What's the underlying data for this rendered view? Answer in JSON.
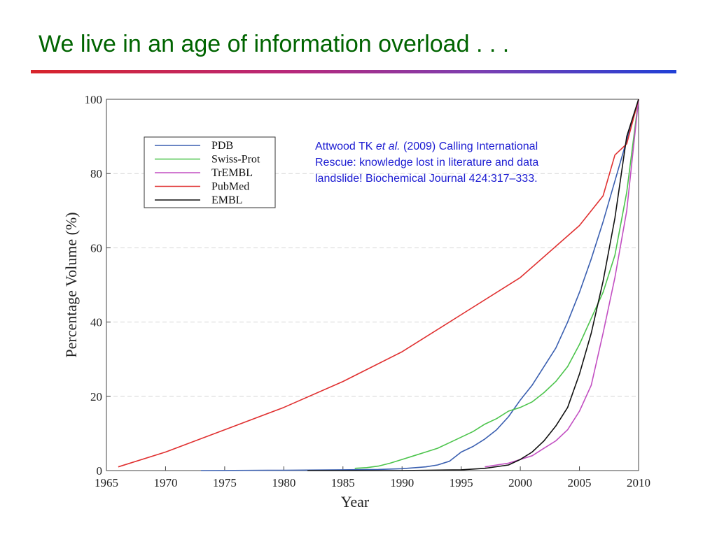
{
  "slide": {
    "title": "We live in an age of information overload . . ."
  },
  "citation": {
    "authors": "Attwood TK",
    "et_al": "et al.",
    "rest": " (2009) Calling International Rescue: knowledge lost in literature and data landslide! Biochemical Journal 424:317–333."
  },
  "colors": {
    "title": "#006400",
    "citation": "#1c1cd2",
    "PDB": "#3a5fb0",
    "Swiss-Prot": "#4cc44c",
    "TrEMBL": "#c24fc2",
    "PubMed": "#e03030",
    "EMBL": "#111111"
  },
  "chart_data": {
    "type": "line",
    "title": "",
    "xlabel": "Year",
    "ylabel": "Percentage Volume (%)",
    "xlim": [
      1965,
      2010
    ],
    "ylim": [
      0,
      100
    ],
    "xticks": [
      1965,
      1970,
      1975,
      1980,
      1985,
      1990,
      1995,
      2000,
      2005,
      2010
    ],
    "yticks": [
      0,
      20,
      40,
      60,
      80,
      100
    ],
    "grid": "horizontal dashed",
    "legend_position": "top-left",
    "series": [
      {
        "name": "PDB",
        "color": "#3a5fb0",
        "points": [
          [
            1973,
            0
          ],
          [
            1980,
            0.1
          ],
          [
            1985,
            0.2
          ],
          [
            1988,
            0.3
          ],
          [
            1990,
            0.5
          ],
          [
            1992,
            1.0
          ],
          [
            1993,
            1.5
          ],
          [
            1994,
            2.5
          ],
          [
            1995,
            5
          ],
          [
            1996,
            6.5
          ],
          [
            1997,
            8.5
          ],
          [
            1998,
            11
          ],
          [
            1999,
            14.5
          ],
          [
            2000,
            19
          ],
          [
            2001,
            23
          ],
          [
            2002,
            28
          ],
          [
            2003,
            33
          ],
          [
            2004,
            40
          ],
          [
            2005,
            48
          ],
          [
            2006,
            57
          ],
          [
            2007,
            67
          ],
          [
            2008,
            78
          ],
          [
            2009,
            89
          ],
          [
            2010,
            100
          ]
        ]
      },
      {
        "name": "Swiss-Prot",
        "color": "#4cc44c",
        "points": [
          [
            1986,
            0.6
          ],
          [
            1987,
            0.8
          ],
          [
            1988,
            1.2
          ],
          [
            1989,
            2
          ],
          [
            1990,
            3
          ],
          [
            1991,
            4
          ],
          [
            1992,
            5
          ],
          [
            1993,
            6
          ],
          [
            1994,
            7.5
          ],
          [
            1995,
            9
          ],
          [
            1996,
            10.5
          ],
          [
            1997,
            12.5
          ],
          [
            1998,
            14
          ],
          [
            1999,
            16
          ],
          [
            2000,
            17
          ],
          [
            2001,
            18.5
          ],
          [
            2002,
            21
          ],
          [
            2003,
            24
          ],
          [
            2004,
            28
          ],
          [
            2005,
            34
          ],
          [
            2006,
            41
          ],
          [
            2007,
            48
          ],
          [
            2008,
            58
          ],
          [
            2009,
            75
          ],
          [
            2010,
            100
          ]
        ]
      },
      {
        "name": "TrEMBL",
        "color": "#c24fc2",
        "points": [
          [
            1997,
            1
          ],
          [
            1998,
            1.5
          ],
          [
            1999,
            2
          ],
          [
            2000,
            3
          ],
          [
            2001,
            4
          ],
          [
            2002,
            6
          ],
          [
            2003,
            8
          ],
          [
            2004,
            11
          ],
          [
            2005,
            16
          ],
          [
            2006,
            23
          ],
          [
            2007,
            37
          ],
          [
            2008,
            52
          ],
          [
            2009,
            70
          ],
          [
            2010,
            100
          ]
        ]
      },
      {
        "name": "PubMed",
        "color": "#e03030",
        "points": [
          [
            1966,
            1
          ],
          [
            1970,
            5
          ],
          [
            1975,
            11
          ],
          [
            1980,
            17
          ],
          [
            1985,
            24
          ],
          [
            1990,
            32
          ],
          [
            1995,
            42
          ],
          [
            2000,
            52
          ],
          [
            2005,
            66
          ],
          [
            2007,
            74
          ],
          [
            2008,
            85
          ],
          [
            2009,
            88
          ],
          [
            2010,
            100
          ]
        ]
      },
      {
        "name": "EMBL",
        "color": "#111111",
        "points": [
          [
            1982,
            0
          ],
          [
            1990,
            0
          ],
          [
            1995,
            0.2
          ],
          [
            1997,
            0.6
          ],
          [
            1999,
            1.5
          ],
          [
            2000,
            3
          ],
          [
            2001,
            5
          ],
          [
            2002,
            8
          ],
          [
            2003,
            12
          ],
          [
            2004,
            17
          ],
          [
            2005,
            26
          ],
          [
            2006,
            37
          ],
          [
            2007,
            51
          ],
          [
            2008,
            68
          ],
          [
            2009,
            90
          ],
          [
            2010,
            100
          ]
        ]
      }
    ]
  }
}
